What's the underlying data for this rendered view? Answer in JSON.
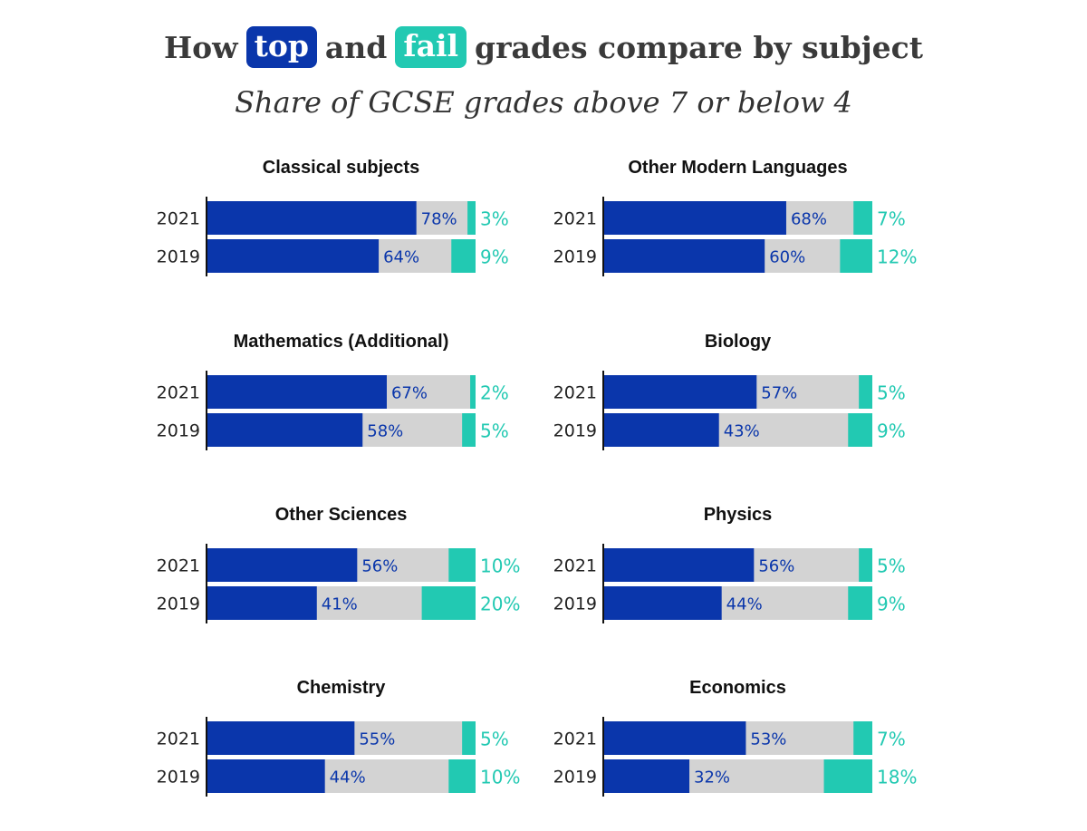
{
  "title": {
    "pre": "How",
    "top_chip": "top",
    "mid": "and",
    "fail_chip": "fail",
    "post": "grades compare by subject"
  },
  "subtitle": "Share of GCSE grades above 7 or below 4",
  "colors": {
    "top": "#0a36ab",
    "middle": "#d3d3d3",
    "fail": "#22c9b2",
    "axis": "#111111"
  },
  "chart_data": {
    "type": "bar",
    "orientation": "horizontal-stacked",
    "value_unit": "%",
    "xlim": [
      0,
      100
    ],
    "panels": [
      {
        "subject": "Classical subjects",
        "rows": [
          {
            "year": "2021",
            "top": 78,
            "fail": 3
          },
          {
            "year": "2019",
            "top": 64,
            "fail": 9
          }
        ]
      },
      {
        "subject": "Other Modern Languages",
        "rows": [
          {
            "year": "2021",
            "top": 68,
            "fail": 7
          },
          {
            "year": "2019",
            "top": 60,
            "fail": 12
          }
        ]
      },
      {
        "subject": "Mathematics (Additional)",
        "rows": [
          {
            "year": "2021",
            "top": 67,
            "fail": 2
          },
          {
            "year": "2019",
            "top": 58,
            "fail": 5
          }
        ]
      },
      {
        "subject": "Biology",
        "rows": [
          {
            "year": "2021",
            "top": 57,
            "fail": 5
          },
          {
            "year": "2019",
            "top": 43,
            "fail": 9
          }
        ]
      },
      {
        "subject": "Other Sciences",
        "rows": [
          {
            "year": "2021",
            "top": 56,
            "fail": 10
          },
          {
            "year": "2019",
            "top": 41,
            "fail": 20
          }
        ]
      },
      {
        "subject": "Physics",
        "rows": [
          {
            "year": "2021",
            "top": 56,
            "fail": 5
          },
          {
            "year": "2019",
            "top": 44,
            "fail": 9
          }
        ]
      },
      {
        "subject": "Chemistry",
        "rows": [
          {
            "year": "2021",
            "top": 55,
            "fail": 5
          },
          {
            "year": "2019",
            "top": 44,
            "fail": 10
          }
        ]
      },
      {
        "subject": "Economics",
        "rows": [
          {
            "year": "2021",
            "top": 53,
            "fail": 7
          },
          {
            "year": "2019",
            "top": 32,
            "fail": 18
          }
        ]
      }
    ]
  }
}
